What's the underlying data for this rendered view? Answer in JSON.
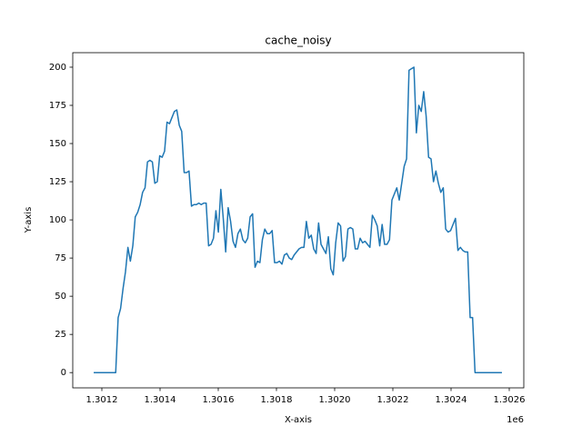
{
  "chart_data": {
    "type": "line",
    "title": "cache_noisy",
    "x_label": "X-axis",
    "y_label": "Y-axis",
    "x_offset_label": "1e6",
    "color": "#1f77b4",
    "grid": false,
    "xlim": [
      1301100,
      1302650
    ],
    "ylim": [
      -10,
      209.5
    ],
    "xticks": [
      {
        "value": 1301200,
        "label": "1.3012"
      },
      {
        "value": 1301400,
        "label": "1.3014"
      },
      {
        "value": 1301600,
        "label": "1.3016"
      },
      {
        "value": 1301800,
        "label": "1.3018"
      },
      {
        "value": 1302000,
        "label": "1.3020"
      },
      {
        "value": 1302200,
        "label": "1.3022"
      },
      {
        "value": 1302400,
        "label": "1.3024"
      },
      {
        "value": 1302600,
        "label": "1.3026"
      }
    ],
    "yticks": [
      0,
      25,
      50,
      75,
      100,
      125,
      150,
      175,
      200
    ],
    "x": [
      1301172,
      1301180.4,
      1301188.8,
      1301197.2,
      1301205.6,
      1301214,
      1301222.4,
      1301230.8,
      1301239.2,
      1301247.6,
      1301256,
      1301264.4,
      1301272.8,
      1301281.2,
      1301289.6,
      1301298,
      1301306.4,
      1301314.8,
      1301323.2,
      1301331.6,
      1301340,
      1301348.4,
      1301356.8,
      1301365.2,
      1301373.6,
      1301382,
      1301390.4,
      1301398.8,
      1301407.2,
      1301415.6,
      1301424,
      1301432.4,
      1301440.8,
      1301449.2,
      1301457.6,
      1301466,
      1301474.4,
      1301482.8,
      1301491.2,
      1301499.6,
      1301508,
      1301516.4,
      1301524.8,
      1301533.2,
      1301541.6,
      1301550,
      1301558.4,
      1301566.8,
      1301575.2,
      1301583.6,
      1301592,
      1301600.4,
      1301608.8,
      1301617.2,
      1301625.6,
      1301634,
      1301642.4,
      1301650.8,
      1301659.2,
      1301667.6,
      1301676,
      1301684.4,
      1301692.8,
      1301701.2,
      1301709.6,
      1301718,
      1301726.4,
      1301734.8,
      1301743.2,
      1301751.6,
      1301760,
      1301768.4,
      1301776.8,
      1301785.2,
      1301793.6,
      1301802,
      1301810.4,
      1301818.8,
      1301827.2,
      1301835.6,
      1301844,
      1301852.4,
      1301860.8,
      1301869.2,
      1301877.6,
      1301886,
      1301894.4,
      1301902.8,
      1301911.2,
      1301919.6,
      1301928,
      1301936.4,
      1301944.8,
      1301953.2,
      1301961.6,
      1301970,
      1301978.4,
      1301986.8,
      1301995.2,
      1302003.6,
      1302012,
      1302020.4,
      1302028.8,
      1302037.2,
      1302045.6,
      1302054,
      1302062.4,
      1302070.8,
      1302079.2,
      1302087.6,
      1302096,
      1302104.4,
      1302112.8,
      1302121.2,
      1302129.6,
      1302138,
      1302146.4,
      1302154.8,
      1302163.2,
      1302171.6,
      1302180,
      1302188.4,
      1302196.8,
      1302205.2,
      1302213.6,
      1302222,
      1302230.4,
      1302238.8,
      1302247.2,
      1302255.6,
      1302264,
      1302272.4,
      1302280.8,
      1302289.2,
      1302297.6,
      1302306,
      1302314.4,
      1302322.8,
      1302331.2,
      1302339.6,
      1302348,
      1302356.4,
      1302364.8,
      1302373.2,
      1302381.6,
      1302390,
      1302398.4,
      1302406.8,
      1302415.2,
      1302423.6,
      1302432,
      1302440.4,
      1302448.8,
      1302457.2,
      1302465.6,
      1302474,
      1302482.4,
      1302490.8,
      1302499.2,
      1302507.6,
      1302516,
      1302524.4,
      1302532.8,
      1302541.2,
      1302549.6,
      1302558,
      1302566.4,
      1302574.8
    ],
    "values": [
      0,
      0,
      0,
      0,
      0,
      0,
      0,
      0,
      0,
      0,
      36,
      42,
      55,
      66,
      82,
      73,
      83,
      102,
      105,
      110,
      118,
      121,
      138,
      139,
      138,
      124,
      125,
      142,
      141,
      145,
      164,
      163,
      167,
      171,
      172,
      162,
      158,
      131,
      131,
      132,
      109,
      110,
      110,
      111,
      110,
      111,
      111,
      83,
      84,
      88,
      106,
      92,
      120,
      101,
      79,
      108,
      99,
      86,
      82,
      91,
      94,
      87,
      85,
      88,
      102,
      104,
      69,
      73,
      72,
      87,
      94,
      91,
      91,
      93,
      72,
      72,
      73,
      71,
      77,
      78,
      75,
      74,
      77,
      79,
      81,
      82,
      82,
      99,
      88,
      90,
      81,
      78,
      98,
      84,
      81,
      78,
      89,
      68,
      64,
      85,
      98,
      96,
      73,
      76,
      94,
      95,
      94,
      81,
      81,
      88,
      85,
      86,
      84,
      82,
      103,
      100,
      96,
      83,
      97,
      84,
      84,
      87,
      113,
      117,
      121,
      113,
      124,
      135,
      140,
      198,
      199,
      200,
      157,
      175,
      171,
      184,
      168,
      141,
      140,
      125,
      132,
      124,
      118,
      121,
      94,
      92,
      93,
      97,
      101,
      80,
      82,
      80,
      79,
      79,
      36,
      36,
      0,
      0,
      0,
      0,
      0,
      0,
      0,
      0,
      0,
      0,
      0,
      0
    ]
  }
}
